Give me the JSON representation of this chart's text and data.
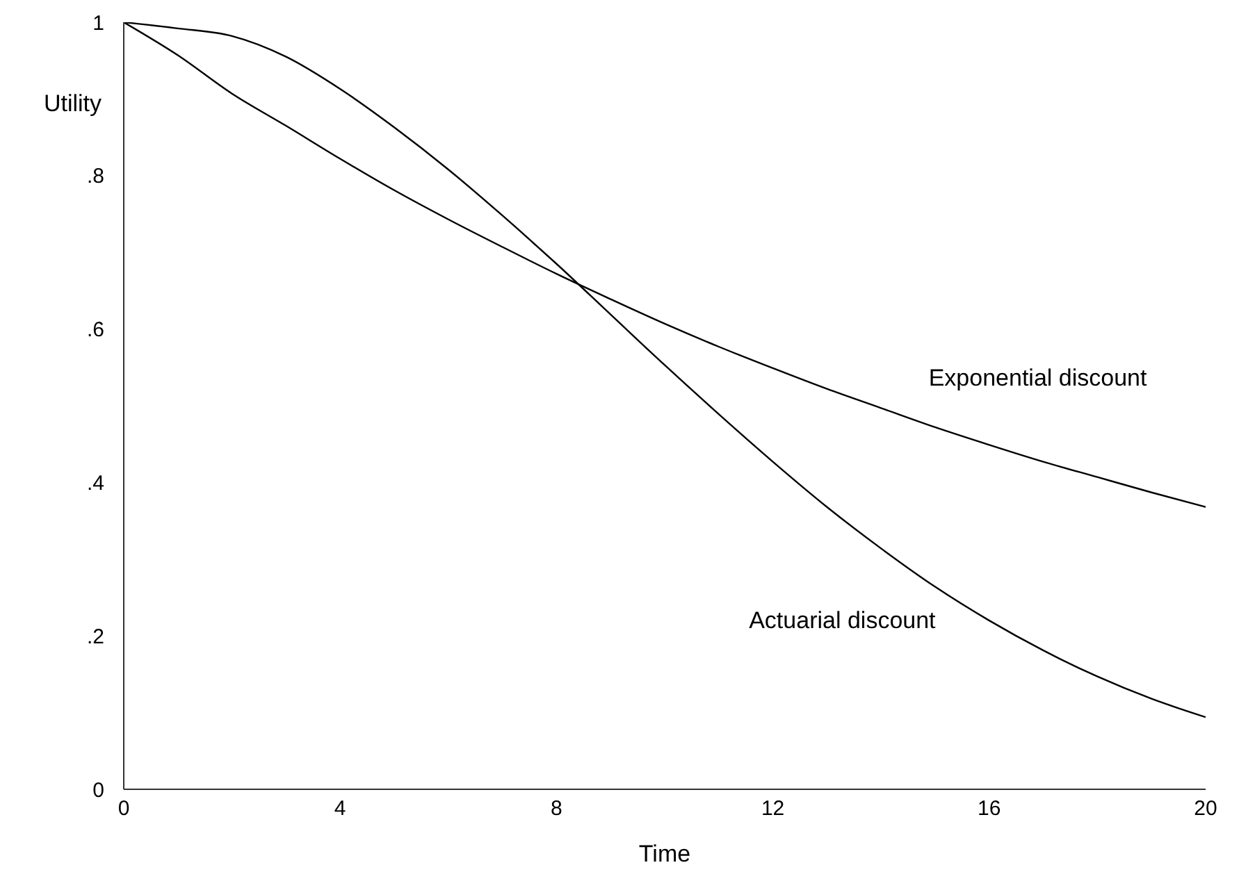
{
  "chart_data": {
    "type": "line",
    "xlabel": "Time",
    "ylabel": "Utility",
    "x": [
      0,
      1,
      2,
      3,
      4,
      5,
      6,
      7,
      8,
      9,
      10,
      11,
      12,
      13,
      14,
      15,
      16,
      17,
      18,
      19,
      20
    ],
    "series": [
      {
        "name": "Exponential discount",
        "color": "#000000",
        "values": [
          1,
          0.957,
          0.907,
          0.865,
          0.822,
          0.781,
          0.743,
          0.707,
          0.672,
          0.639,
          0.607,
          0.577,
          0.549,
          0.522,
          0.497,
          0.472,
          0.449,
          0.427,
          0.407,
          0.387,
          0.368
        ]
      },
      {
        "name": "Actuarial discount",
        "color": "#000000",
        "values": [
          1,
          0.992,
          0.982,
          0.955,
          0.913,
          0.863,
          0.808,
          0.748,
          0.685,
          0.619,
          0.553,
          0.489,
          0.427,
          0.368,
          0.314,
          0.264,
          0.22,
          0.181,
          0.147,
          0.118,
          0.094
        ]
      }
    ],
    "xlim": [
      0,
      20
    ],
    "xticks": [
      0,
      4,
      8,
      12,
      16,
      20
    ],
    "ylim": [
      0,
      1
    ],
    "yticks": [
      0,
      {
        "value": 0.2,
        "label": ".2"
      },
      {
        "value": 0.4,
        "label": ".4"
      },
      {
        "value": 0.6,
        "label": ".6"
      },
      {
        "value": 0.8,
        "label": ".8"
      },
      1
    ],
    "legend": false,
    "marker": "none",
    "line_style": "solid"
  }
}
